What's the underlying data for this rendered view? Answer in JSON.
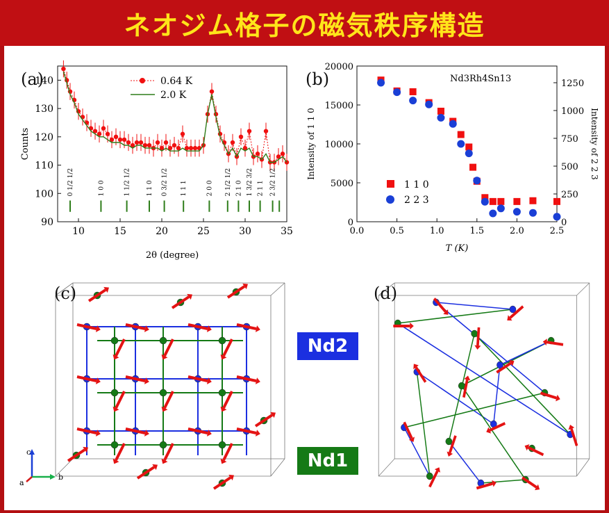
{
  "title": "ネオジム格子の磁気秩序構造",
  "colors": {
    "frame": "#b30f12",
    "title_bg": "#c00f13",
    "title_text": "#ffe51a",
    "nd2": "#1b2fe0",
    "nd1": "#157a16",
    "spin": "#e41313",
    "red_series": "#f01010",
    "blue_series": "#1a3fd6"
  },
  "panels": {
    "a": {
      "label": "(a)"
    },
    "b": {
      "label": "(b)"
    },
    "c": {
      "label": "(c)"
    },
    "d": {
      "label": "(d)"
    }
  },
  "badges": {
    "nd2": "Nd2",
    "nd1": "Nd1"
  },
  "axes_triad": {
    "c": "c",
    "a": "a",
    "b": "b"
  },
  "chart_data": [
    {
      "id": "a",
      "type": "line",
      "xlabel": "2θ (degree)",
      "ylabel": "Counts",
      "xlim": [
        7.5,
        35
      ],
      "ylim": [
        90,
        145
      ],
      "xticks": [
        10,
        15,
        20,
        25,
        30,
        35
      ],
      "yticks": [
        90,
        100,
        110,
        120,
        130,
        140
      ],
      "legend": {
        "placement": "top-right"
      },
      "series": [
        {
          "name": "0.64 K",
          "style": "markers-dotted",
          "color": "#f01010",
          "x": [
            8.2,
            8.6,
            9,
            9.5,
            10,
            10.5,
            11,
            11.5,
            12,
            12.5,
            13,
            13.5,
            14,
            14.5,
            15,
            15.5,
            16,
            16.5,
            17,
            17.5,
            18,
            18.5,
            19,
            19.5,
            20,
            20.5,
            21,
            21.5,
            22,
            22.5,
            23,
            23.5,
            24,
            24.5,
            25,
            25.5,
            26,
            26.5,
            27,
            27.5,
            28,
            28.5,
            29,
            29.5,
            30,
            30.5,
            31,
            31.5,
            32,
            32.5,
            33,
            33.5,
            34,
            34.5,
            35
          ],
          "y": [
            144,
            140,
            136,
            133,
            129,
            127,
            125,
            123,
            122,
            121,
            123,
            121,
            119,
            120,
            119,
            119,
            118,
            117,
            118,
            118,
            117,
            117,
            116,
            118,
            116,
            118,
            116,
            117,
            116,
            121,
            116,
            116,
            116,
            116,
            117,
            128,
            136,
            128,
            121,
            118,
            114,
            118,
            113,
            120,
            116,
            122,
            113,
            114,
            112,
            122,
            111,
            111,
            113,
            114,
            111
          ]
        },
        {
          "name": "2.0 K",
          "style": "line",
          "color": "#2e7d1a",
          "x": [
            8.2,
            8.6,
            9,
            9.5,
            10,
            10.5,
            11,
            11.5,
            12,
            12.5,
            13,
            13.5,
            14,
            14.5,
            15,
            15.5,
            16,
            16.5,
            17,
            17.5,
            18,
            18.5,
            19,
            19.5,
            20,
            20.5,
            21,
            21.5,
            22,
            22.5,
            23,
            23.5,
            24,
            24.5,
            25,
            25.5,
            26,
            26.5,
            27,
            27.5,
            28,
            28.5,
            29,
            29.5,
            30,
            30.5,
            31,
            31.5,
            32,
            32.5,
            33,
            33.5,
            34,
            34.5,
            35
          ],
          "y": [
            143,
            139,
            135,
            132,
            128,
            126,
            124,
            122,
            121,
            120,
            120,
            119,
            118,
            118,
            118,
            117,
            117,
            116,
            117,
            117,
            116,
            116,
            116,
            116,
            115,
            116,
            115,
            115,
            115,
            116,
            115,
            115,
            115,
            115,
            117,
            128,
            135,
            127,
            120,
            117,
            114,
            116,
            113,
            116,
            115,
            116,
            113,
            113,
            112,
            114,
            111,
            111,
            112,
            113,
            111
          ]
        }
      ],
      "peak_markers": {
        "x": [
          9,
          12.7,
          15.8,
          18.5,
          20.3,
          22.6,
          25.7,
          27.9,
          29.2,
          30.5,
          31.8,
          33.3,
          34.1
        ],
        "labels": [
          "0 1/2 1/2",
          "1 0 0",
          "1 1/2 1/2",
          "1 1 0",
          "0 3/2 1/2",
          "1 1 1",
          "2 0 0",
          "2 1/2 1/2",
          "2 1 0",
          "1 3/2 3/2",
          "2 1 1",
          "2 3/2 1/2",
          ""
        ]
      }
    },
    {
      "id": "b",
      "type": "scatter",
      "annotation": "Nd3Rh4Sn13",
      "xlabel": "T (K)",
      "ylabel": "Intensity of 1 1 0",
      "y2label": "Intensity of 2 2 3",
      "xlim": [
        0,
        2.5
      ],
      "ylim": [
        0,
        20000
      ],
      "y2lim": [
        0,
        1400
      ],
      "xticks": [
        0,
        0.5,
        1.0,
        1.5,
        2.0,
        2.5
      ],
      "xtick_labels": [
        "0.0",
        "0.5",
        "1.0",
        "1.5",
        "2.0",
        "2.5"
      ],
      "yticks": [
        0,
        5000,
        10000,
        15000,
        20000
      ],
      "y2ticks": [
        0,
        250,
        500,
        750,
        1000,
        1250
      ],
      "legend": {
        "placement": "lower-left"
      },
      "series": [
        {
          "name": "1 1 0",
          "marker": "square",
          "color": "#f01010",
          "axis": "left",
          "x": [
            0.3,
            0.5,
            0.7,
            0.9,
            1.05,
            1.2,
            1.3,
            1.4,
            1.45,
            1.5,
            1.6,
            1.7,
            1.8,
            2.0,
            2.2,
            2.5
          ],
          "y": [
            18200,
            16800,
            16700,
            15300,
            14200,
            12900,
            11200,
            9600,
            7000,
            5200,
            3100,
            2600,
            2600,
            2600,
            2700,
            2600
          ]
        },
        {
          "name": "2 2 3",
          "marker": "circle",
          "color": "#1a3fd6",
          "axis": "right",
          "x": [
            0.3,
            0.5,
            0.7,
            0.9,
            1.05,
            1.2,
            1.3,
            1.4,
            1.5,
            1.6,
            1.7,
            1.8,
            2.0,
            2.2,
            2.5
          ],
          "y": [
            1250,
            1165,
            1090,
            1055,
            935,
            880,
            700,
            615,
            370,
            180,
            75,
            120,
            90,
            80,
            45
          ]
        }
      ]
    }
  ]
}
